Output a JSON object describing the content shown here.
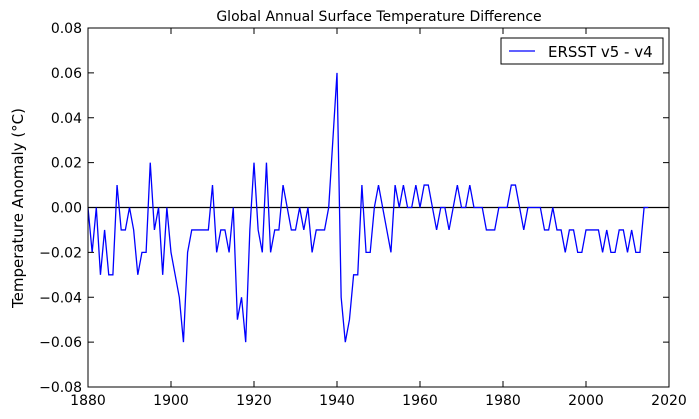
{
  "chart_data": {
    "type": "line",
    "title": "Global Annual Surface Temperature Difference",
    "xlabel": "",
    "ylabel": "Temperature Anomaly ($^\\circ$C)",
    "ylabel_display": "Temperature Anomaly (°C)",
    "xlim": [
      1880,
      2020
    ],
    "ylim": [
      -0.08,
      0.08
    ],
    "x_ticks": [
      1880,
      1900,
      1920,
      1940,
      1960,
      1980,
      2000,
      2020
    ],
    "y_ticks": [
      -0.08,
      -0.06,
      -0.04,
      -0.02,
      0.0,
      0.02,
      0.04,
      0.06,
      0.08
    ],
    "x_tick_labels": [
      "1880",
      "1900",
      "1920",
      "1940",
      "1960",
      "1980",
      "2000",
      "2020"
    ],
    "y_tick_labels": [
      "−0.08",
      "−0.06",
      "−0.04",
      "−0.02",
      "0.00",
      "0.02",
      "0.04",
      "0.06",
      "0.08"
    ],
    "legend": {
      "placement": "top-right",
      "entries": [
        "ERSST v5 - v4"
      ]
    },
    "zero_line": true,
    "grid": false,
    "series": [
      {
        "name": "ERSST v5 - v4",
        "color": "#0000ff",
        "x": [
          1880,
          1881,
          1882,
          1883,
          1884,
          1885,
          1886,
          1887,
          1888,
          1889,
          1890,
          1891,
          1892,
          1893,
          1894,
          1895,
          1896,
          1897,
          1898,
          1899,
          1900,
          1901,
          1902,
          1903,
          1904,
          1905,
          1906,
          1907,
          1908,
          1909,
          1910,
          1911,
          1912,
          1913,
          1914,
          1915,
          1916,
          1917,
          1918,
          1919,
          1920,
          1921,
          1922,
          1923,
          1924,
          1925,
          1926,
          1927,
          1928,
          1929,
          1930,
          1931,
          1932,
          1933,
          1934,
          1935,
          1936,
          1937,
          1938,
          1939,
          1940,
          1941,
          1942,
          1943,
          1944,
          1945,
          1946,
          1947,
          1948,
          1949,
          1950,
          1951,
          1952,
          1953,
          1954,
          1955,
          1956,
          1957,
          1958,
          1959,
          1960,
          1961,
          1962,
          1963,
          1964,
          1965,
          1966,
          1967,
          1968,
          1969,
          1970,
          1971,
          1972,
          1973,
          1974,
          1975,
          1976,
          1977,
          1978,
          1979,
          1980,
          1981,
          1982,
          1983,
          1984,
          1985,
          1986,
          1987,
          1988,
          1989,
          1990,
          1991,
          1992,
          1993,
          1994,
          1995,
          1996,
          1997,
          1998,
          1999,
          2000,
          2001,
          2002,
          2003,
          2004,
          2005,
          2006,
          2007,
          2008,
          2009,
          2010,
          2011,
          2012,
          2013,
          2014,
          2015
        ],
        "y": [
          0.0,
          -0.02,
          0.0,
          -0.03,
          -0.01,
          -0.03,
          -0.03,
          0.01,
          -0.01,
          -0.01,
          0.0,
          -0.01,
          -0.03,
          -0.02,
          -0.02,
          0.02,
          -0.01,
          0.0,
          -0.03,
          0.0,
          -0.02,
          -0.03,
          -0.04,
          -0.06,
          -0.02,
          -0.01,
          -0.01,
          -0.01,
          -0.01,
          -0.01,
          0.01,
          -0.02,
          -0.01,
          -0.01,
          -0.02,
          0.0,
          -0.05,
          -0.04,
          -0.06,
          -0.01,
          0.02,
          -0.01,
          -0.02,
          0.02,
          -0.02,
          -0.01,
          -0.01,
          0.01,
          0.0,
          -0.01,
          -0.01,
          0.0,
          -0.01,
          0.0,
          -0.02,
          -0.01,
          -0.01,
          -0.01,
          0.0,
          0.03,
          0.06,
          -0.04,
          -0.06,
          -0.05,
          -0.03,
          -0.03,
          0.01,
          -0.02,
          -0.02,
          0.0,
          0.01,
          0.0,
          -0.01,
          -0.02,
          0.01,
          0.0,
          0.01,
          0.0,
          0.0,
          0.01,
          0.0,
          0.01,
          0.01,
          0.0,
          -0.01,
          0.0,
          0.0,
          -0.01,
          0.0,
          0.01,
          0.0,
          0.0,
          0.01,
          0.0,
          0.0,
          0.0,
          -0.01,
          -0.01,
          -0.01,
          0.0,
          0.0,
          0.0,
          0.01,
          0.01,
          0.0,
          -0.01,
          0.0,
          0.0,
          0.0,
          0.0,
          -0.01,
          -0.01,
          0.0,
          -0.01,
          -0.01,
          -0.02,
          -0.01,
          -0.01,
          -0.02,
          -0.02,
          -0.01,
          -0.01,
          -0.01,
          -0.01,
          -0.02,
          -0.01,
          -0.02,
          -0.02,
          -0.01,
          -0.01,
          -0.02,
          -0.01,
          -0.02,
          -0.02,
          0.0,
          0.0
        ]
      }
    ]
  }
}
